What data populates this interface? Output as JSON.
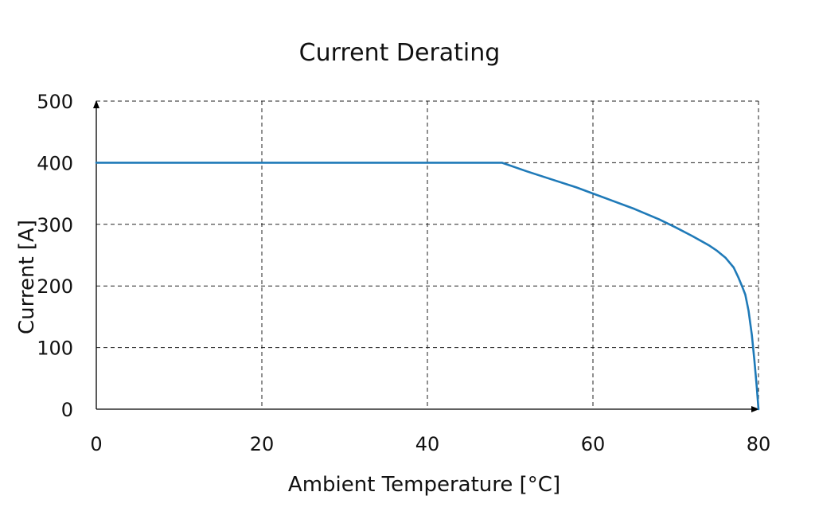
{
  "chart_data": {
    "type": "line",
    "title": "Current Derating",
    "xlabel": "Ambient Temperature [°C]",
    "ylabel": "Current [A]",
    "xlim": [
      0,
      80
    ],
    "ylim": [
      0,
      500
    ],
    "x_ticks": [
      0,
      20,
      40,
      60,
      80
    ],
    "y_ticks": [
      0,
      100,
      200,
      300,
      400,
      500
    ],
    "grid": true,
    "legend": "none",
    "series": [
      {
        "color": "#1f7ab8",
        "points": [
          [
            0,
            400
          ],
          [
            49,
            400
          ],
          [
            52,
            386
          ],
          [
            55,
            373
          ],
          [
            58,
            360
          ],
          [
            60,
            350
          ],
          [
            62,
            340
          ],
          [
            65,
            325
          ],
          [
            68,
            308
          ],
          [
            70,
            295
          ],
          [
            72,
            281
          ],
          [
            74,
            266
          ],
          [
            75,
            257
          ],
          [
            76,
            246
          ],
          [
            77,
            230
          ],
          [
            77.6,
            213
          ],
          [
            78,
            200
          ],
          [
            78.4,
            186
          ],
          [
            78.8,
            160
          ],
          [
            79.2,
            120
          ],
          [
            79.5,
            80
          ],
          [
            79.8,
            35
          ],
          [
            80,
            0
          ]
        ]
      }
    ]
  }
}
